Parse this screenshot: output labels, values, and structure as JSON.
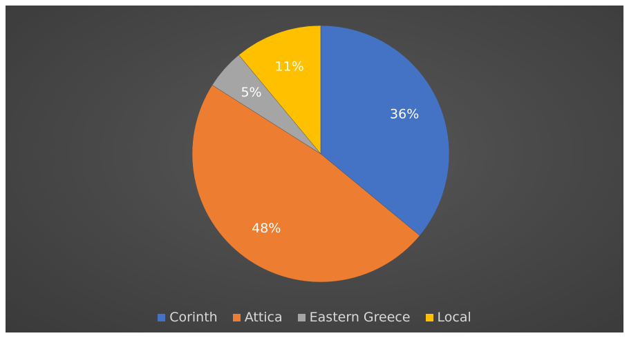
{
  "chart_data": {
    "type": "pie",
    "title": "",
    "legend_position": "bottom",
    "slices": [
      {
        "name": "Corinth",
        "value": 36,
        "label": "36%",
        "color": "#4472C4"
      },
      {
        "name": "Attica",
        "value": 48,
        "label": "48%",
        "color": "#ED7D31"
      },
      {
        "name": "Eastern Greece",
        "value": 5,
        "label": "5%",
        "color": "#A5A5A5"
      },
      {
        "name": "Local",
        "value": 11,
        "label": "11%",
        "color": "#FFC000"
      }
    ]
  },
  "legend": {
    "items": [
      {
        "label": "Corinth",
        "color": "#4472C4"
      },
      {
        "label": "Attica",
        "color": "#ED7D31"
      },
      {
        "label": "Eastern Greece",
        "color": "#A5A5A5"
      },
      {
        "label": "Local",
        "color": "#FFC000"
      }
    ]
  }
}
